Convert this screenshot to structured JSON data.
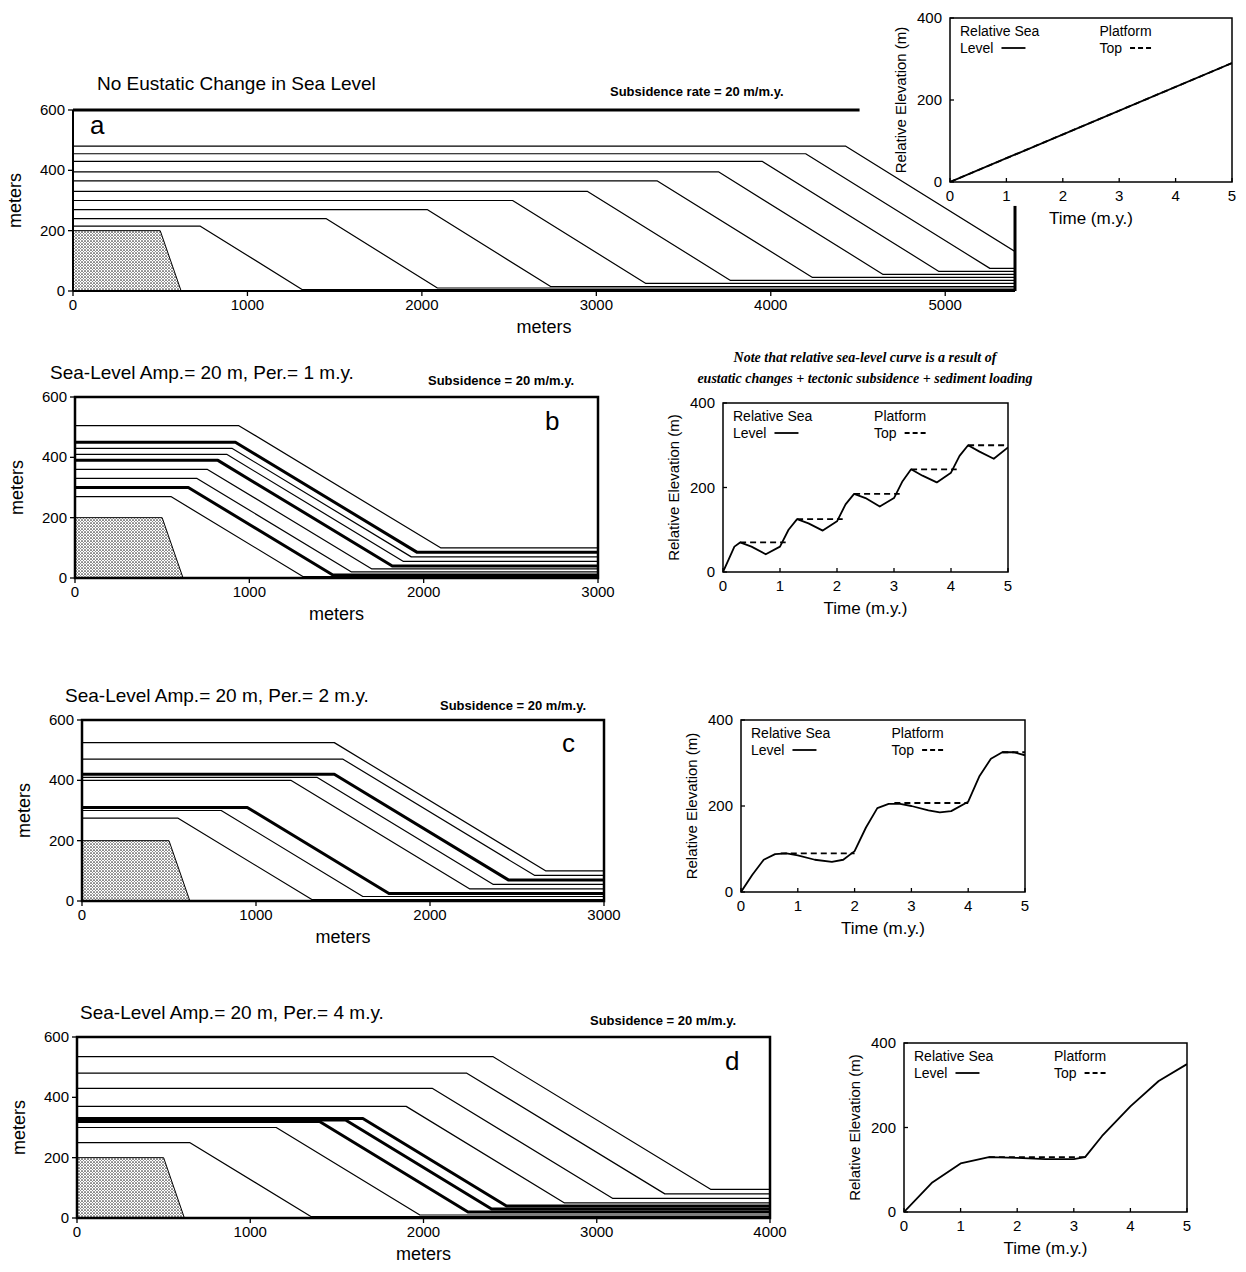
{
  "chart_data": [
    {
      "type": "line",
      "title": "No Eustatic Change in Sea Level",
      "subtitle": "Subsidence rate = 20 m/m.y.",
      "panel": "a",
      "x_label": "meters",
      "y_label": "meters",
      "xlim": [
        0,
        5400
      ],
      "xticks": [
        0,
        1000,
        2000,
        3000,
        4000,
        5000
      ],
      "ylim": [
        0,
        600
      ],
      "yticks": [
        0,
        200,
        400,
        600
      ],
      "series": [
        {
          "type": "area",
          "color": "#000000",
          "x": [
            0,
            500,
            620
          ],
          "values": [
            200,
            200,
            0
          ]
        },
        {
          "color": "#000000",
          "line_style": "solid",
          "x": [
            0,
            730,
            1313,
            5400
          ],
          "values": [
            215,
            215,
            5,
            5
          ]
        },
        {
          "color": "#000000",
          "line_style": "solid",
          "x": [
            0,
            1450,
            2089,
            5400
          ],
          "values": [
            240,
            240,
            10,
            10
          ]
        },
        {
          "color": "#000000",
          "line_style": "solid",
          "x": [
            0,
            2030,
            2738,
            5400
          ],
          "values": [
            270,
            270,
            15,
            15
          ]
        },
        {
          "color": "#000000",
          "line_style": "solid",
          "x": [
            0,
            2520,
            3284,
            5400
          ],
          "values": [
            300,
            300,
            25,
            25
          ]
        },
        {
          "color": "#000000",
          "line_style": "solid",
          "x": [
            0,
            2950,
            3769,
            5400
          ],
          "values": [
            330,
            330,
            35,
            35
          ]
        },
        {
          "color": "#000000",
          "line_style": "solid",
          "x": [
            0,
            3350,
            4239,
            5400
          ],
          "values": [
            365,
            365,
            45,
            45
          ]
        },
        {
          "color": "#000000",
          "line_style": "solid",
          "x": [
            0,
            3700,
            4644,
            5400
          ],
          "values": [
            395,
            395,
            55,
            55
          ]
        },
        {
          "color": "#000000",
          "line_style": "solid",
          "x": [
            0,
            3950,
            4964,
            5400
          ],
          "values": [
            430,
            430,
            65,
            65
          ]
        },
        {
          "color": "#000000",
          "line_style": "solid",
          "x": [
            0,
            4200,
            5256,
            5400
          ],
          "values": [
            455,
            455,
            75,
            75
          ]
        },
        {
          "color": "#000000",
          "line_style": "solid",
          "x": [
            0,
            4430,
            5527
          ],
          "values": [
            480,
            480,
            85
          ]
        }
      ]
    },
    {
      "type": "line",
      "x_label": "Time (m.y.)",
      "y_label": "Relative Elevation (m)",
      "legend": "top-left",
      "xlim": [
        0,
        5
      ],
      "xticks": [
        0,
        1,
        2,
        3,
        4,
        5
      ],
      "ylim": [
        0,
        400
      ],
      "yticks": [
        0,
        200,
        400
      ],
      "series": [
        {
          "name": "Relative Sea Level",
          "color": "#000000",
          "line_style": "solid",
          "x": [
            0,
            5
          ],
          "values": [
            0,
            290
          ]
        },
        {
          "name": "Platform Top",
          "color": "#000000",
          "line_style": "dashed",
          "x": [
            0,
            5
          ],
          "values": [
            0,
            290
          ]
        }
      ]
    },
    {
      "type": "line",
      "title": "Sea-Level Amp.= 20 m, Per.= 1 m.y.",
      "subtitle": "Subsidence = 20 m/m.y.",
      "panel": "b",
      "x_label": "meters",
      "y_label": "meters",
      "xlim": [
        0,
        3000
      ],
      "xticks": [
        0,
        1000,
        2000,
        3000
      ],
      "ylim": [
        0,
        600
      ],
      "yticks": [
        0,
        200,
        400,
        600
      ],
      "series": [
        {
          "type": "area",
          "color": "#000000",
          "x": [
            0,
            500,
            620
          ],
          "values": [
            200,
            200,
            0
          ]
        },
        {
          "color": "#000000",
          "line_style": "solid",
          "x": [
            0,
            550,
            1307,
            3000
          ],
          "values": [
            270,
            270,
            5,
            5
          ]
        },
        {
          "color": "#000000",
          "line_style": "bold",
          "x": [
            0,
            650,
            1479,
            3000
          ],
          "values": [
            300,
            300,
            10,
            10
          ]
        },
        {
          "color": "#000000",
          "line_style": "solid",
          "x": [
            0,
            700,
            1586,
            3000
          ],
          "values": [
            330,
            330,
            20,
            20
          ]
        },
        {
          "color": "#000000",
          "line_style": "solid",
          "x": [
            0,
            760,
            1703,
            3000
          ],
          "values": [
            360,
            360,
            30,
            30
          ]
        },
        {
          "color": "#000000",
          "line_style": "bold",
          "x": [
            0,
            820,
            1820,
            3000
          ],
          "values": [
            390,
            390,
            40,
            40
          ]
        },
        {
          "color": "#000000",
          "line_style": "solid",
          "x": [
            0,
            870,
            1884,
            3000
          ],
          "values": [
            410,
            410,
            55,
            55
          ]
        },
        {
          "color": "#000000",
          "line_style": "solid",
          "x": [
            0,
            900,
            1929,
            3000
          ],
          "values": [
            430,
            430,
            70,
            70
          ]
        },
        {
          "color": "#000000",
          "line_style": "bold",
          "x": [
            0,
            920,
            1963,
            3000
          ],
          "values": [
            450,
            450,
            85,
            85
          ]
        },
        {
          "color": "#000000",
          "line_style": "solid",
          "x": [
            0,
            940,
            2097,
            3000
          ],
          "values": [
            505,
            505,
            100,
            100
          ]
        }
      ]
    },
    {
      "type": "line",
      "x_label": "Time (m.y.)",
      "y_label": "Relative Elevation (m)",
      "legend": "top-left",
      "annotation": "Note that relative sea-level curve is a result of eustatic changes + tectonic subsidence + sediment loading",
      "xlim": [
        0,
        5
      ],
      "xticks": [
        0,
        1,
        2,
        3,
        4,
        5
      ],
      "ylim": [
        0,
        400
      ],
      "yticks": [
        0,
        200,
        400
      ],
      "series": [
        {
          "name": "Relative Sea Level",
          "color": "#000000",
          "line_style": "solid",
          "x": [
            0,
            0.1,
            0.2,
            0.3,
            0.5,
            0.75,
            1.0,
            1.15,
            1.3,
            1.5,
            1.75,
            2.0,
            2.15,
            2.3,
            2.5,
            2.75,
            3.0,
            3.15,
            3.3,
            3.5,
            3.75,
            4.0,
            4.15,
            4.3,
            4.5,
            4.75,
            5.0
          ],
          "values": [
            0,
            30,
            60,
            70,
            60,
            42,
            60,
            100,
            125,
            115,
            98,
            120,
            160,
            185,
            175,
            155,
            175,
            215,
            243,
            228,
            212,
            235,
            275,
            300,
            285,
            268,
            295
          ]
        },
        {
          "name": "Platform Top",
          "color": "#000000",
          "line_style": "dashed",
          "x": [
            0.3,
            1.1,
            1.2,
            1.3,
            2.1,
            2.2,
            2.3,
            3.1,
            3.2,
            3.3,
            4.1,
            4.2,
            4.3,
            5.0
          ],
          "values": [
            70,
            70,
            null,
            125,
            125,
            null,
            185,
            185,
            null,
            243,
            243,
            null,
            300,
            300
          ]
        }
      ]
    },
    {
      "type": "line",
      "title": "Sea-Level Amp.= 20 m, Per.= 2 m.y.",
      "subtitle": "Subsidence = 20 m/m.y.",
      "panel": "c",
      "x_label": "meters",
      "y_label": "meters",
      "xlim": [
        0,
        3000
      ],
      "xticks": [
        0,
        1000,
        2000,
        3000
      ],
      "ylim": [
        0,
        600
      ],
      "yticks": [
        0,
        200,
        400,
        600
      ],
      "series": [
        {
          "type": "area",
          "color": "#000000",
          "x": [
            0,
            500,
            620
          ],
          "values": [
            200,
            200,
            0
          ]
        },
        {
          "color": "#000000",
          "line_style": "solid",
          "x": [
            0,
            550,
            1321,
            3000
          ],
          "values": [
            275,
            275,
            5,
            5
          ]
        },
        {
          "color": "#000000",
          "line_style": "solid",
          "x": [
            0,
            800,
            1614,
            3000
          ],
          "values": [
            300,
            300,
            15,
            15
          ]
        },
        {
          "color": "#000000",
          "line_style": "bold",
          "x": [
            0,
            950,
            1764,
            3000
          ],
          "values": [
            310,
            310,
            25,
            25
          ]
        },
        {
          "color": "#000000",
          "line_style": "solid",
          "x": [
            0,
            1200,
            2229,
            3000
          ],
          "values": [
            400,
            400,
            40,
            40
          ]
        },
        {
          "color": "#000000",
          "line_style": "solid",
          "x": [
            0,
            1350,
            2364,
            3000
          ],
          "values": [
            410,
            410,
            55,
            55
          ]
        },
        {
          "color": "#000000",
          "line_style": "bold",
          "x": [
            0,
            1450,
            2450,
            3000
          ],
          "values": [
            420,
            420,
            70,
            70
          ]
        },
        {
          "color": "#000000",
          "line_style": "solid",
          "x": [
            0,
            1500,
            2600,
            3000
          ],
          "values": [
            470,
            470,
            85,
            85
          ]
        },
        {
          "color": "#000000",
          "line_style": "solid",
          "x": [
            0,
            1450,
            2664,
            3000
          ],
          "values": [
            525,
            525,
            100,
            100
          ]
        }
      ]
    },
    {
      "type": "line",
      "x_label": "Time (m.y.)",
      "y_label": "Relative Elevation (m)",
      "legend": "top-left",
      "xlim": [
        0,
        5
      ],
      "xticks": [
        0,
        1,
        2,
        3,
        4,
        5
      ],
      "ylim": [
        0,
        400
      ],
      "yticks": [
        0,
        200,
        400
      ],
      "series": [
        {
          "name": "Relative Sea Level",
          "color": "#000000",
          "line_style": "solid",
          "x": [
            0,
            0.2,
            0.4,
            0.6,
            0.8,
            1.0,
            1.3,
            1.6,
            1.8,
            2.0,
            2.2,
            2.4,
            2.6,
            2.8,
            3.0,
            3.3,
            3.5,
            3.7,
            4.0,
            4.2,
            4.4,
            4.6,
            4.8,
            5.0
          ],
          "values": [
            0,
            40,
            75,
            88,
            90,
            85,
            75,
            70,
            75,
            95,
            150,
            195,
            205,
            205,
            200,
            190,
            185,
            188,
            210,
            270,
            310,
            325,
            325,
            318
          ]
        },
        {
          "name": "Platform Top",
          "color": "#000000",
          "line_style": "dashed",
          "x": [
            0.7,
            2.0,
            2.05,
            2.7,
            4.0,
            4.05,
            4.6,
            5.0
          ],
          "values": [
            90,
            90,
            null,
            207,
            207,
            null,
            325,
            325
          ]
        }
      ]
    },
    {
      "type": "line",
      "title": "Sea-Level Amp.= 20 m, Per.= 4 m.y.",
      "subtitle": "Subsidence = 20 m/m.y.",
      "panel": "d",
      "x_label": "meters",
      "y_label": "meters",
      "xlim": [
        0,
        4000
      ],
      "xticks": [
        0,
        1000,
        2000,
        3000,
        4000
      ],
      "ylim": [
        0,
        600
      ],
      "yticks": [
        0,
        200,
        400,
        600
      ],
      "series": [
        {
          "type": "area",
          "color": "#000000",
          "x": [
            0,
            500,
            620
          ],
          "values": [
            200,
            200,
            0
          ]
        },
        {
          "color": "#000000",
          "line_style": "solid",
          "x": [
            0,
            650,
            1350,
            4000
          ],
          "values": [
            250,
            250,
            5,
            5
          ]
        },
        {
          "color": "#000000",
          "line_style": "solid",
          "x": [
            0,
            1150,
            1979,
            4000
          ],
          "values": [
            300,
            300,
            10,
            10
          ]
        },
        {
          "color": "#000000",
          "line_style": "bold",
          "x": [
            0,
            1400,
            2257,
            4000
          ],
          "values": [
            320,
            320,
            20,
            20
          ]
        },
        {
          "color": "#000000",
          "line_style": "bold",
          "x": [
            0,
            1550,
            2393,
            4000
          ],
          "values": [
            325,
            325,
            30,
            30
          ]
        },
        {
          "color": "#000000",
          "line_style": "bold",
          "x": [
            0,
            1650,
            2479,
            4000
          ],
          "values": [
            330,
            330,
            40,
            40
          ]
        },
        {
          "color": "#000000",
          "line_style": "solid",
          "x": [
            0,
            1900,
            2814,
            4000
          ],
          "values": [
            370,
            370,
            50,
            50
          ]
        },
        {
          "color": "#000000",
          "line_style": "solid",
          "x": [
            0,
            2050,
            3093,
            4000
          ],
          "values": [
            430,
            430,
            65,
            65
          ]
        },
        {
          "color": "#000000",
          "line_style": "solid",
          "x": [
            0,
            2250,
            3393,
            4000
          ],
          "values": [
            480,
            480,
            80,
            80
          ]
        },
        {
          "color": "#000000",
          "line_style": "solid",
          "x": [
            0,
            2400,
            3657,
            4000
          ],
          "values": [
            535,
            535,
            95,
            95
          ]
        }
      ]
    },
    {
      "type": "line",
      "x_label": "Time (m.y.)",
      "y_label": "Relative Elevation (m)",
      "legend": "top-left",
      "xlim": [
        0,
        5
      ],
      "xticks": [
        0,
        1,
        2,
        3,
        4,
        5
      ],
      "ylim": [
        0,
        400
      ],
      "yticks": [
        0,
        200,
        400
      ],
      "series": [
        {
          "name": "Relative Sea Level",
          "color": "#000000",
          "line_style": "solid",
          "x": [
            0,
            0.5,
            1.0,
            1.5,
            2.0,
            2.5,
            3.0,
            3.2,
            3.5,
            4.0,
            4.5,
            5.0
          ],
          "values": [
            0,
            70,
            115,
            130,
            128,
            125,
            125,
            130,
            180,
            250,
            310,
            350
          ]
        },
        {
          "name": "Platform Top",
          "color": "#000000",
          "line_style": "dashed",
          "x": [
            1.5,
            3.2
          ],
          "values": [
            130,
            130
          ]
        }
      ]
    }
  ]
}
